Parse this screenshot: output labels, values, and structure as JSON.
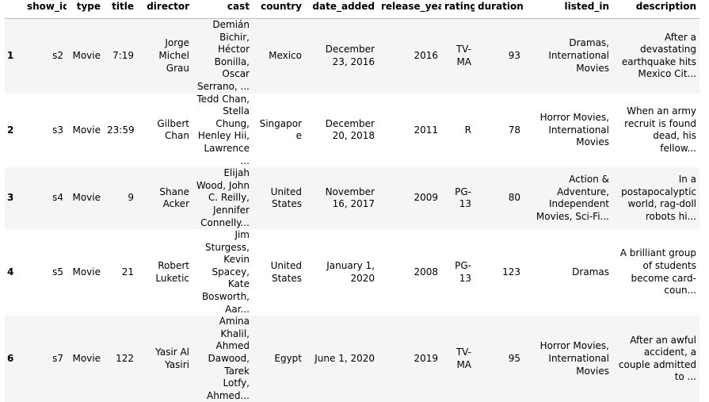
{
  "table": {
    "index_header": "",
    "columns": [
      "show_id",
      "type",
      "title",
      "director",
      "cast",
      "country",
      "date_added",
      "release_year",
      "rating",
      "duration",
      "listed_in",
      "description"
    ],
    "rows": [
      {
        "index": "1",
        "show_id": "s2",
        "type": "Movie",
        "title": "7:19",
        "director": "Jorge Michel Grau",
        "cast": "Demián Bichir, Héctor Bonilla, Oscar Serrano, ...",
        "country": "Mexico",
        "date_added": "December 23, 2016",
        "release_year": "2016",
        "rating": "TV-MA",
        "duration": "93",
        "listed_in": "Dramas, International Movies",
        "description": "After a devastating earthquake hits Mexico Cit..."
      },
      {
        "index": "2",
        "show_id": "s3",
        "type": "Movie",
        "title": "23:59",
        "director": "Gilbert Chan",
        "cast": "Tedd Chan, Stella Chung, Henley Hii, Lawrence ...",
        "country": "Singapore",
        "date_added": "December 20, 2018",
        "release_year": "2011",
        "rating": "R",
        "duration": "78",
        "listed_in": "Horror Movies, International Movies",
        "description": "When an army recruit is found dead, his fellow..."
      },
      {
        "index": "3",
        "show_id": "s4",
        "type": "Movie",
        "title": "9",
        "director": "Shane Acker",
        "cast": "Elijah Wood, John C. Reilly, Jennifer Connelly...",
        "country": "United States",
        "date_added": "November 16, 2017",
        "release_year": "2009",
        "rating": "PG-13",
        "duration": "80",
        "listed_in": "Action & Adventure, Independent Movies, Sci-Fi...",
        "description": "In a postapocalyptic world, rag-doll robots hi..."
      },
      {
        "index": "4",
        "show_id": "s5",
        "type": "Movie",
        "title": "21",
        "director": "Robert Luketic",
        "cast": "Jim Sturgess, Kevin Spacey, Kate Bosworth, Aar...",
        "country": "United States",
        "date_added": "January 1, 2020",
        "release_year": "2008",
        "rating": "PG-13",
        "duration": "123",
        "listed_in": "Dramas",
        "description": "A brilliant group of students become card-coun..."
      },
      {
        "index": "6",
        "show_id": "s7",
        "type": "Movie",
        "title": "122",
        "director": "Yasir Al Yasiri",
        "cast": "Amina Khalil, Ahmed Dawood, Tarek Lotfy, Ahmed...",
        "country": "Egypt",
        "date_added": "June 1, 2020",
        "release_year": "2019",
        "rating": "TV-MA",
        "duration": "95",
        "listed_in": "Horror Movies, International Movies",
        "description": "After an awful accident, a couple admitted to ..."
      }
    ]
  }
}
